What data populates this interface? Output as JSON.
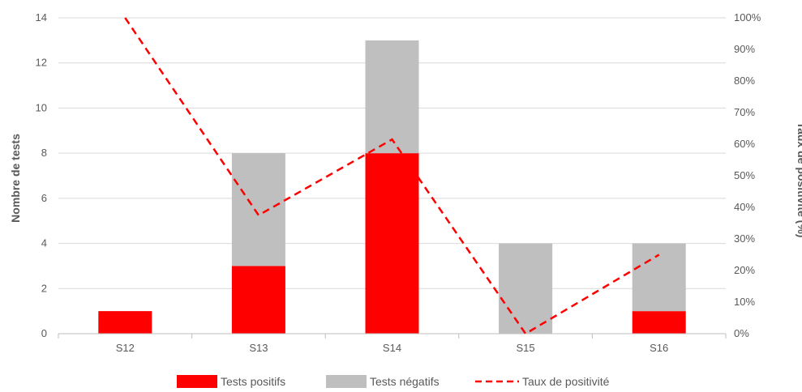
{
  "chart_data": {
    "type": "bar",
    "stacked": true,
    "categories": [
      "S12",
      "S13",
      "S14",
      "S15",
      "S16"
    ],
    "series": [
      {
        "name": "Tests positifs",
        "values": [
          1,
          3,
          8,
          0,
          1
        ],
        "color": "#ff0000",
        "axis": "left"
      },
      {
        "name": "Tests négatifs",
        "values": [
          0,
          5,
          5,
          4,
          3
        ],
        "color": "#bfbfbf",
        "axis": "left"
      },
      {
        "name": "Taux de positivité",
        "type": "line",
        "style": "dashed",
        "values": [
          100,
          37.5,
          61.5,
          0,
          25
        ],
        "color": "#ff0000",
        "axis": "right"
      }
    ],
    "ylabel": "Nombre de tests",
    "y2label": "Taux de positivité (%)",
    "ylim": [
      0,
      14
    ],
    "y_ticks": [
      0,
      2,
      4,
      6,
      8,
      10,
      12,
      14
    ],
    "y2lim": [
      0,
      100
    ],
    "y2_ticks": [
      "0%",
      "10%",
      "20%",
      "30%",
      "40%",
      "50%",
      "60%",
      "70%",
      "80%",
      "90%",
      "100%"
    ],
    "grid": true,
    "legend": "bottom"
  }
}
